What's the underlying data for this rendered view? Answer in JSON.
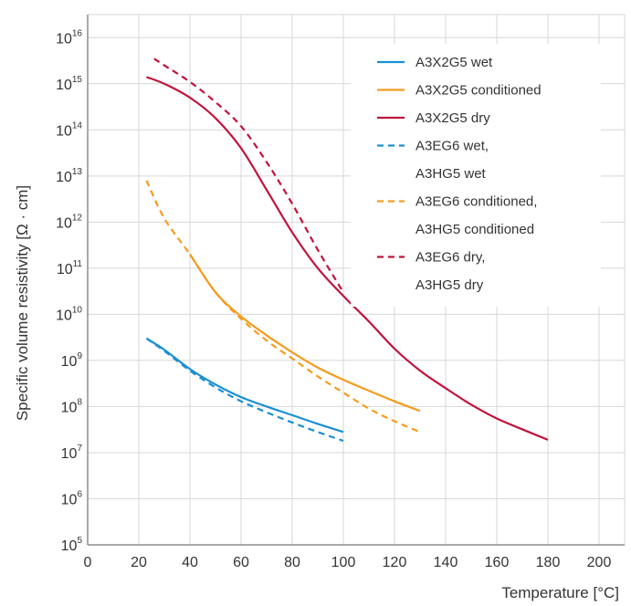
{
  "chart_data": {
    "type": "line",
    "xlabel": "Temperature [°C]",
    "ylabel": "Specific volume resistivity [Ω · cm]",
    "xlim": [
      0,
      210
    ],
    "ylim_log10": [
      5,
      16.5
    ],
    "y_scale": "log",
    "grid": true,
    "legend_position": "top-right",
    "x_ticks": [
      "0",
      "20",
      "40",
      "60",
      "80",
      "100",
      "120",
      "140",
      "160",
      "180",
      "200"
    ],
    "y_ticks": [
      {
        "base": "10",
        "exp": "5"
      },
      {
        "base": "10",
        "exp": "6"
      },
      {
        "base": "10",
        "exp": "7"
      },
      {
        "base": "10",
        "exp": "8"
      },
      {
        "base": "10",
        "exp": "9"
      },
      {
        "base": "10",
        "exp": "10"
      },
      {
        "base": "10",
        "exp": "11"
      },
      {
        "base": "10",
        "exp": "12"
      },
      {
        "base": "10",
        "exp": "13"
      },
      {
        "base": "10",
        "exp": "14"
      },
      {
        "base": "10",
        "exp": "15"
      },
      {
        "base": "10",
        "exp": "16"
      }
    ],
    "series": [
      {
        "name": "A3X2G5 wet",
        "color": "#1a8fd4",
        "dash": false,
        "points": [
          [
            23,
            3000000000.0
          ],
          [
            30,
            1700000000.0
          ],
          [
            40,
            650000000.0
          ],
          [
            50,
            300000000.0
          ],
          [
            60,
            160000000.0
          ],
          [
            70,
            100000000.0
          ],
          [
            80,
            65000000.0
          ],
          [
            90,
            42000000.0
          ],
          [
            100,
            28000000.0
          ]
        ]
      },
      {
        "name": "A3X2G5 conditioned",
        "color": "#f39c1f",
        "dash": false,
        "points": [
          [
            40,
            200000000000.0
          ],
          [
            50,
            30000000000.0
          ],
          [
            60,
            9000000000.0
          ],
          [
            70,
            3500000000.0
          ],
          [
            80,
            1500000000.0
          ],
          [
            90,
            700000000.0
          ],
          [
            100,
            380000000.0
          ],
          [
            110,
            220000000.0
          ],
          [
            120,
            130000000.0
          ],
          [
            130,
            80000000.0
          ]
        ]
      },
      {
        "name": "A3X2G5 dry",
        "color": "#c0143c",
        "dash": false,
        "points": [
          [
            23,
            1400000000000000.0
          ],
          [
            30,
            1000000000000000.0
          ],
          [
            40,
            500000000000000.0
          ],
          [
            50,
            180000000000000.0
          ],
          [
            60,
            40000000000000.0
          ],
          [
            70,
            5000000000000.0
          ],
          [
            80,
            600000000000.0
          ],
          [
            90,
            100000000000.0
          ],
          [
            100,
            25000000000.0
          ],
          [
            110,
            7000000000.0
          ],
          [
            120,
            1800000000.0
          ],
          [
            130,
            600000000.0
          ],
          [
            140,
            250000000.0
          ],
          [
            150,
            110000000.0
          ],
          [
            160,
            55000000.0
          ],
          [
            170,
            32000000.0
          ],
          [
            180,
            19000000.0
          ]
        ]
      },
      {
        "name": "A3EG6 wet,",
        "name_line2": "A3HG5 wet",
        "color": "#1a8fd4",
        "dash": true,
        "points": [
          [
            23,
            3000000000.0
          ],
          [
            30,
            1600000000.0
          ],
          [
            40,
            600000000.0
          ],
          [
            50,
            260000000.0
          ],
          [
            60,
            130000000.0
          ],
          [
            70,
            75000000.0
          ],
          [
            80,
            45000000.0
          ],
          [
            90,
            28000000.0
          ],
          [
            100,
            18000000.0
          ]
        ]
      },
      {
        "name": "A3EG6 conditioned,",
        "name_line2": "A3HG5 conditioned",
        "color": "#f39c1f",
        "dash": true,
        "points": [
          [
            23,
            8000000000000.0
          ],
          [
            30,
            1200000000000.0
          ],
          [
            40,
            200000000000.0
          ],
          [
            50,
            30000000000.0
          ],
          [
            60,
            8000000000.0
          ],
          [
            70,
            2700000000.0
          ],
          [
            80,
            1100000000.0
          ],
          [
            90,
            450000000.0
          ],
          [
            100,
            200000000.0
          ],
          [
            110,
            90000000.0
          ],
          [
            120,
            48000000.0
          ],
          [
            130,
            28000000.0
          ]
        ]
      },
      {
        "name": "A3EG6 dry,",
        "name_line2": "A3HG5 dry",
        "color": "#c0143c",
        "dash": true,
        "points": [
          [
            26,
            3500000000000000.0
          ],
          [
            30,
            2500000000000000.0
          ],
          [
            40,
            1100000000000000.0
          ],
          [
            50,
            400000000000000.0
          ],
          [
            60,
            120000000000000.0
          ],
          [
            70,
            20000000000000.0
          ],
          [
            80,
            2500000000000.0
          ],
          [
            90,
            250000000000.0
          ],
          [
            100,
            30000000000.0
          ]
        ]
      }
    ]
  }
}
